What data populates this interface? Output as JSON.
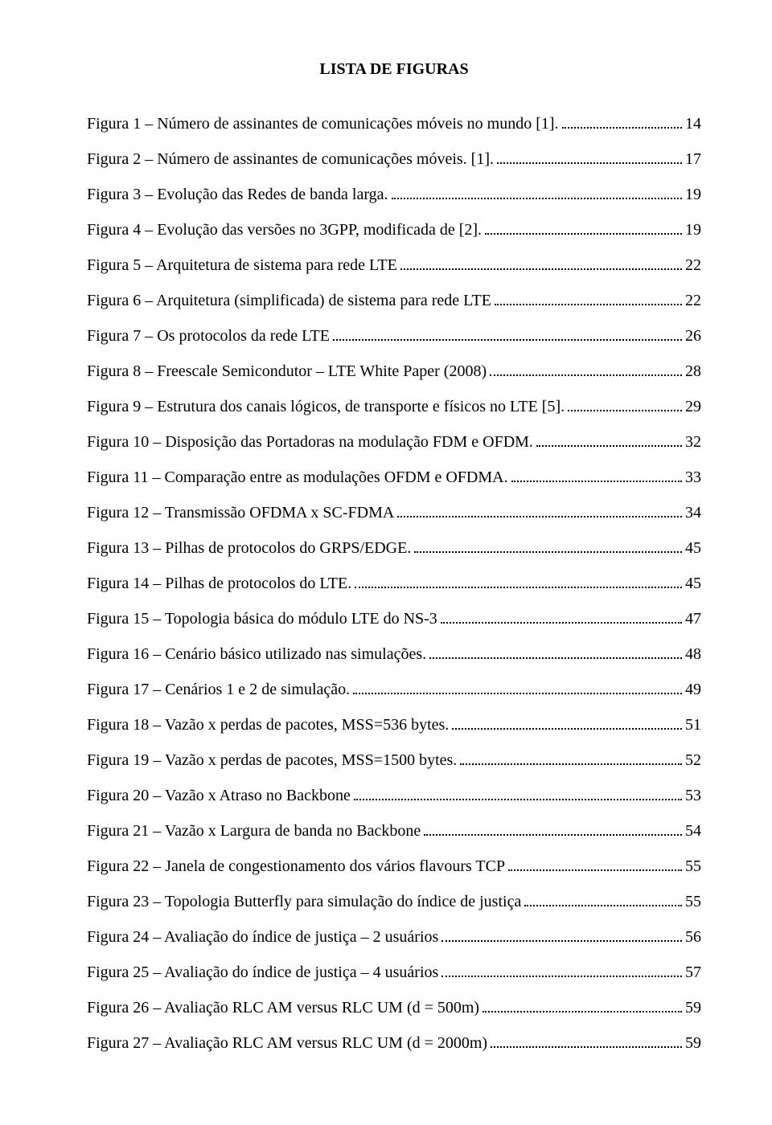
{
  "title": "LISTA DE FIGURAS",
  "entries": [
    {
      "label": "Figura 1 – Número de assinantes de comunicações móveis no mundo [1].",
      "page": "14"
    },
    {
      "label": "Figura 2 – Número de assinantes de comunicações móveis. [1].",
      "page": "17"
    },
    {
      "label": "Figura 3 – Evolução das Redes de banda larga.",
      "page": "19"
    },
    {
      "label": "Figura 4 – Evolução das versões no 3GPP, modificada de [2].",
      "page": "19"
    },
    {
      "label": "Figura 5 – Arquitetura de sistema para rede LTE",
      "page": "22"
    },
    {
      "label": "Figura 6 – Arquitetura (simplificada) de sistema para rede LTE",
      "page": "22"
    },
    {
      "label": "Figura 7 – Os protocolos da rede LTE",
      "page": "26"
    },
    {
      "label": "Figura 8 – Freescale Semicondutor – LTE White Paper (2008)",
      "page": "28"
    },
    {
      "label": "Figura 9 – Estrutura dos canais lógicos, de transporte e físicos no LTE [5].",
      "page": "29"
    },
    {
      "label": "Figura 10 – Disposição das Portadoras na modulação FDM e OFDM.",
      "page": "32"
    },
    {
      "label": "Figura 11 – Comparação entre as modulações OFDM e OFDMA.",
      "page": "33"
    },
    {
      "label": "Figura 12 – Transmissão OFDMA x SC-FDMA",
      "page": "34"
    },
    {
      "label": "Figura 13 – Pilhas de protocolos do GRPS/EDGE.",
      "page": "45"
    },
    {
      "label": "Figura 14 – Pilhas de protocolos do LTE.",
      "page": "45"
    },
    {
      "label": "Figura 15 – Topologia básica do módulo LTE do NS-3",
      "page": "47"
    },
    {
      "label": "Figura 16 – Cenário básico utilizado nas simulações.",
      "page": "48"
    },
    {
      "label": "Figura 17 – Cenários 1 e 2 de simulação.",
      "page": "49"
    },
    {
      "label": "Figura 18 – Vazão x perdas de pacotes, MSS=536 bytes.",
      "page": "51"
    },
    {
      "label": "Figura 19 – Vazão x perdas de pacotes, MSS=1500 bytes.",
      "page": "52"
    },
    {
      "label": "Figura 20 – Vazão x Atraso no Backbone",
      "page": "53"
    },
    {
      "label": "Figura 21 – Vazão x Largura de banda no Backbone",
      "page": "54"
    },
    {
      "label": "Figura 22 – Janela de congestionamento dos vários flavours TCP",
      "page": "55"
    },
    {
      "label": "Figura 23 – Topologia Butterfly para simulação do índice de justiça",
      "page": "55"
    },
    {
      "label": "Figura 24 – Avaliação do índice de justiça – 2 usuários",
      "page": "56"
    },
    {
      "label": "Figura 25 – Avaliação do índice de justiça – 4 usuários",
      "page": "57"
    },
    {
      "label": "Figura 26 – Avaliação RLC AM versus RLC UM (d = 500m)",
      "page": "59"
    },
    {
      "label": "Figura 27 – Avaliação RLC AM versus RLC UM (d = 2000m)",
      "page": "59"
    }
  ]
}
